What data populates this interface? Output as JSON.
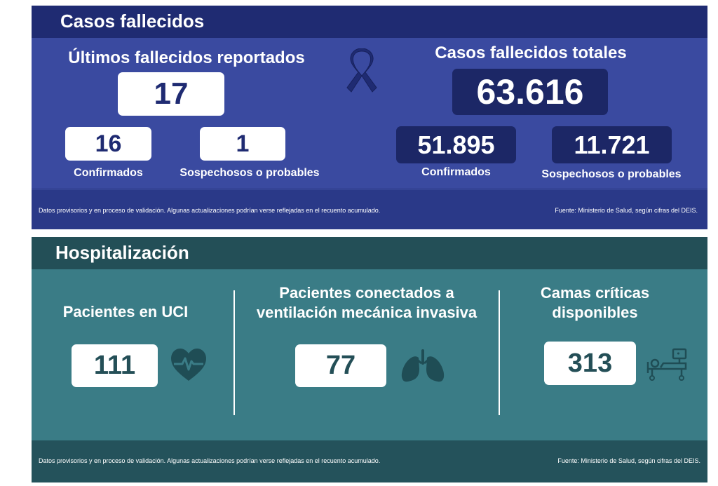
{
  "fallecidos": {
    "title": "Casos fallecidos",
    "latest": {
      "heading": "Últimos fallecidos reportados",
      "total": "17",
      "confirmed_value": "16",
      "confirmed_label": "Confirmados",
      "suspected_value": "1",
      "suspected_label": "Sospechosos o probables"
    },
    "total": {
      "heading": "Casos fallecidos totales",
      "total": "63.616",
      "confirmed_value": "51.895",
      "confirmed_label": "Confirmados",
      "suspected_value": "11.721",
      "suspected_label": "Sospechosos o probables"
    },
    "footer_note": "Datos provisorios y en proceso de validación. Algunas actualizaciones podrían verse reflejadas en el recuento acumulado.",
    "source": "Fuente: Ministerio de Salud, según cifras del DEIS.",
    "icon": "mourning-ribbon-icon"
  },
  "hospitalizacion": {
    "title": "Hospitalización",
    "uci": {
      "label": "Pacientes en UCI",
      "value": "111",
      "icon": "heart-pulse-icon"
    },
    "ventilation": {
      "label_line1": "Pacientes conectados a",
      "label_line2": "ventilación mecánica invasiva",
      "value": "77",
      "icon": "lungs-icon"
    },
    "beds": {
      "label_line1": "Camas críticas",
      "label_line2": "disponibles",
      "value": "313",
      "icon": "hospital-bed-icon"
    },
    "footer_note": "Datos provisorios y en proceso de validación. Algunas actualizaciones podrían verse reflejadas en el recuento acumulado.",
    "source": "Fuente: Ministerio de Salud, según cifras del DEIS."
  },
  "colors": {
    "deaths_title_bar": "#1f2b72",
    "deaths_panel": "#3a4aa0",
    "hosp_title_bar": "#234f57",
    "hosp_panel": "#3a7c86"
  }
}
